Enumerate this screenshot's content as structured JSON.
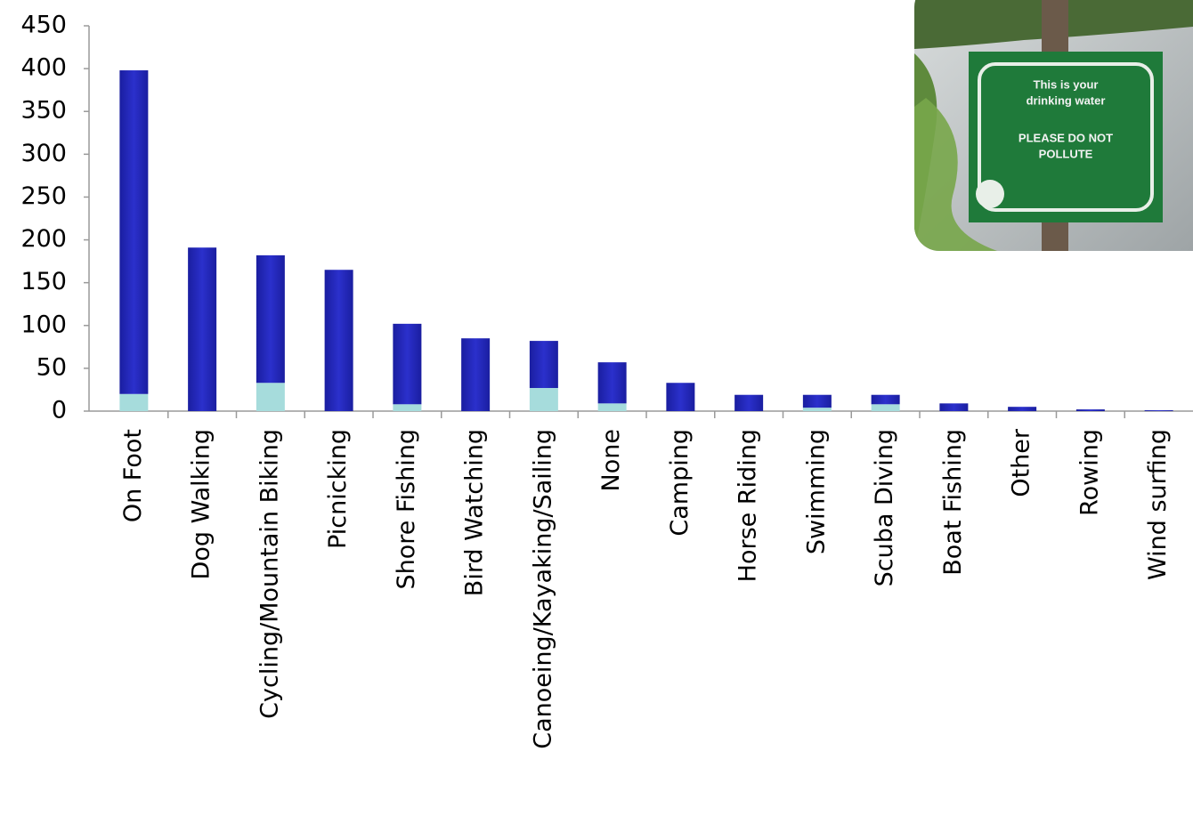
{
  "chart_data": {
    "type": "stacked-bar",
    "categories": [
      "On Foot",
      "Dog Walking",
      "Cycling/Mountain Biking",
      "Picnicking",
      "Shore Fishing",
      "Bird Watching",
      "Canoeing/Kayaking/Sailing",
      "None",
      "Camping",
      "Horse Riding",
      "Swimming",
      "Scuba Diving",
      "Boat Fishing",
      "Other",
      "Rowing",
      "Wind surfing"
    ],
    "series": [
      {
        "color": "#a6dcdc",
        "values": [
          20,
          0,
          33,
          0,
          8,
          0,
          27,
          9,
          0,
          0,
          4,
          8,
          0,
          0,
          0,
          0
        ]
      },
      {
        "color": "#2326b8",
        "values": [
          378,
          191,
          149,
          165,
          94,
          85,
          55,
          48,
          33,
          19,
          15,
          11,
          9,
          5,
          2,
          1
        ]
      }
    ],
    "ylim": [
      0,
      450
    ],
    "yticks": [
      0,
      50,
      100,
      150,
      200,
      250,
      300,
      350,
      400,
      450
    ],
    "grid": false
  },
  "photo": {
    "sign_text": [
      "This is your",
      "drinking water",
      "PLEASE DO NOT",
      "POLLUTE"
    ]
  }
}
